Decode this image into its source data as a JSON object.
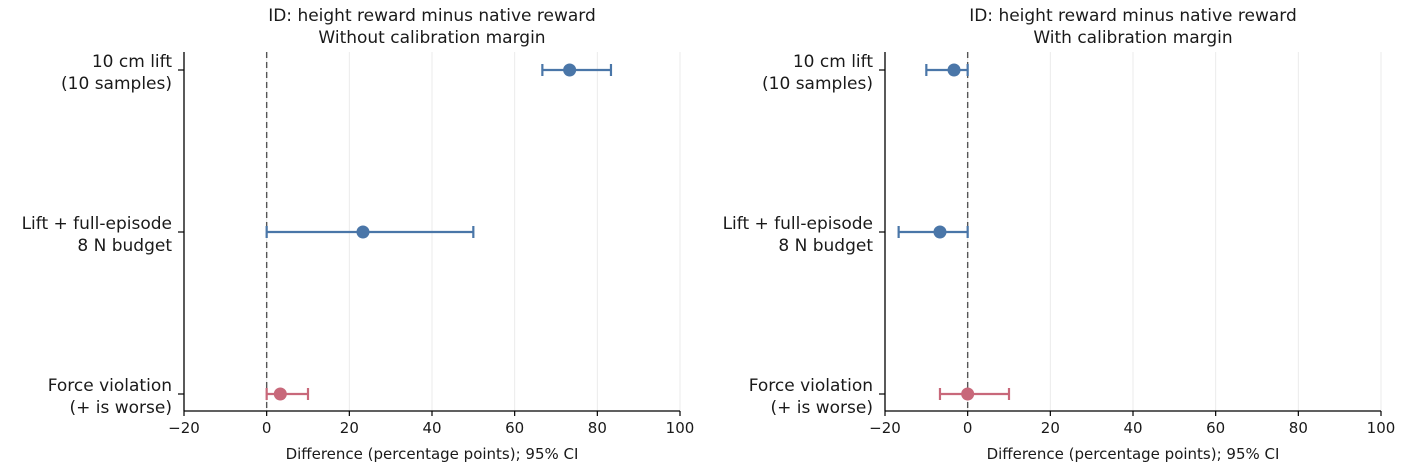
{
  "chart_data": [
    {
      "type": "scatter",
      "title": "ID: height reward minus native reward",
      "subtitle": "Without calibration margin",
      "xlabel": "Difference (percentage points); 95% CI",
      "xlim": [
        -20,
        100
      ],
      "xticks": [
        "−20",
        "0",
        "20",
        "40",
        "60",
        "80",
        "100"
      ],
      "xtick_values": [
        -20,
        0,
        20,
        40,
        60,
        80,
        100
      ],
      "reference_line_x": 0,
      "grid": "vertical",
      "categories": [
        {
          "line1": "10 cm lift",
          "line2": "(10 samples)"
        },
        {
          "line1": "Lift + full-episode",
          "line2": "8 N budget"
        },
        {
          "line1": "Force violation",
          "line2": "(+ is worse)"
        }
      ],
      "points": [
        {
          "estimate": 73.3,
          "ci_low": 66.7,
          "ci_high": 83.3,
          "color": "#4a76a8"
        },
        {
          "estimate": 23.3,
          "ci_low": 0.0,
          "ci_high": 50.0,
          "color": "#4a76a8"
        },
        {
          "estimate": 3.3,
          "ci_low": 0.0,
          "ci_high": 10.0,
          "color": "#c8687a"
        }
      ]
    },
    {
      "type": "scatter",
      "title": "ID: height reward minus native reward",
      "subtitle": "With calibration margin",
      "xlabel": "Difference (percentage points); 95% CI",
      "xlim": [
        -20,
        100
      ],
      "xticks": [
        "−20",
        "0",
        "20",
        "40",
        "60",
        "80",
        "100"
      ],
      "xtick_values": [
        -20,
        0,
        20,
        40,
        60,
        80,
        100
      ],
      "reference_line_x": 0,
      "grid": "vertical",
      "categories": [
        {
          "line1": "10 cm lift",
          "line2": "(10 samples)"
        },
        {
          "line1": "Lift + full-episode",
          "line2": "8 N budget"
        },
        {
          "line1": "Force violation",
          "line2": "(+ is worse)"
        }
      ],
      "points": [
        {
          "estimate": -3.3,
          "ci_low": -10.0,
          "ci_high": 0.0,
          "color": "#4a76a8"
        },
        {
          "estimate": -6.7,
          "ci_low": -16.7,
          "ci_high": 0.0,
          "color": "#4a76a8"
        },
        {
          "estimate": 0.0,
          "ci_low": -6.7,
          "ci_high": 10.0,
          "color": "#c8687a"
        }
      ]
    }
  ]
}
